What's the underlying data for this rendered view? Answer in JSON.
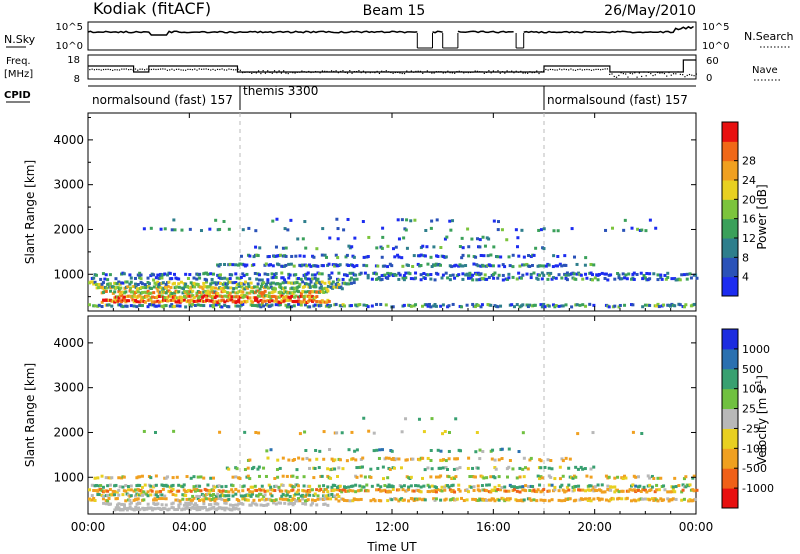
{
  "header": {
    "station": "Kodiak (fitACF)",
    "beam": "Beam 15",
    "date": "26/May/2010"
  },
  "panel_labels": {
    "nsky": "N.Sky",
    "nsky_ticks": [
      "10^5",
      "10^0"
    ],
    "nsearch": "N.Search",
    "nsearch_ticks": [
      "10^5",
      "10^0"
    ],
    "freq_line1": "Freq.",
    "freq_line2": "[MHz]",
    "freq_ticks": [
      "18",
      "8"
    ],
    "nave": "Nave",
    "nave_ticks": [
      "60",
      "0"
    ],
    "cpid": "CPID"
  },
  "cpid_segments": [
    {
      "label": "normalsound (fast) 157"
    },
    {
      "label": "themis 3300"
    },
    {
      "label": "normalsound (fast) 157"
    }
  ],
  "xaxis": {
    "title": "Time UT",
    "ticks": [
      "00:00",
      "04:00",
      "08:00",
      "12:00",
      "16:00",
      "20:00",
      "00:00"
    ]
  },
  "yaxis": {
    "title": "Slant Range [km]",
    "ticks": [
      "1000",
      "2000",
      "3000",
      "4000"
    ]
  },
  "power_colorbar": {
    "title": "Power [dB]",
    "ticks": [
      "4",
      "8",
      "12",
      "16",
      "20",
      "24",
      "28"
    ],
    "colors": [
      "#1c2cf0",
      "#2a52b8",
      "#2e7e8c",
      "#3aa05a",
      "#7cc43c",
      "#e8d020",
      "#f0a020",
      "#f06818",
      "#e81010"
    ]
  },
  "velocity_colorbar": {
    "title": "Velocity [m s",
    "title_sup": "-1",
    "title_end": "]",
    "ticks": [
      "-1000",
      "-500",
      "-100",
      "-25",
      "25",
      "100",
      "500",
      "1000"
    ],
    "colors": [
      "#e81010",
      "#f06018",
      "#f0a020",
      "#e8d020",
      "#b8b8b8",
      "#70c040",
      "#38a070",
      "#2a70b0",
      "#1c2ce0"
    ]
  },
  "chart_data": {
    "type": "heatmap",
    "title": "Kodiak (fitACF)",
    "subtitle": "Beam 15",
    "date": "26/May/2010",
    "xlabel": "Time UT",
    "xlim": [
      0,
      24
    ],
    "ylabel": "Slant Range [km]",
    "ylim": [
      180,
      4600
    ],
    "grid": false,
    "cpid_changes_hours": [
      6,
      18
    ],
    "panels": [
      {
        "name": "Power",
        "colorbar_label": "Power [dB]",
        "colorbar_range": [
          0,
          32
        ],
        "bands": [
          {
            "t0": 0.0,
            "t1": 24.0,
            "range_km": 300,
            "density": 0.55,
            "value": 9
          },
          {
            "t0": 0.5,
            "t1": 9.5,
            "range_km": 400,
            "density": 0.85,
            "value": 27
          },
          {
            "t0": 1.0,
            "t1": 9.0,
            "range_km": 500,
            "density": 0.85,
            "value": 23
          },
          {
            "t0": 0.5,
            "t1": 9.5,
            "range_km": 600,
            "density": 0.8,
            "value": 19
          },
          {
            "t0": 0.3,
            "t1": 10.0,
            "range_km": 700,
            "density": 0.75,
            "value": 15
          },
          {
            "t0": 0.0,
            "t1": 10.5,
            "range_km": 800,
            "density": 0.65,
            "value": 12
          },
          {
            "t0": 0.0,
            "t1": 24.0,
            "range_km": 900,
            "density": 0.35,
            "value": 7
          },
          {
            "t0": 0.0,
            "t1": 24.0,
            "range_km": 1000,
            "density": 0.45,
            "value": 6
          },
          {
            "t0": 5.0,
            "t1": 20.0,
            "range_km": 1200,
            "density": 0.4,
            "value": 7
          },
          {
            "t0": 6.0,
            "t1": 20.0,
            "range_km": 1400,
            "density": 0.3,
            "value": 6
          },
          {
            "t0": 6.5,
            "t1": 18.0,
            "range_km": 1600,
            "density": 0.22,
            "value": 7
          },
          {
            "t0": 8.0,
            "t1": 17.0,
            "range_km": 1800,
            "density": 0.15,
            "value": 6
          },
          {
            "t0": 2.0,
            "t1": 22.5,
            "range_km": 2000,
            "density": 0.12,
            "value": 7
          },
          {
            "t0": 3.0,
            "t1": 23.5,
            "range_km": 2200,
            "density": 0.05,
            "value": 6
          }
        ]
      },
      {
        "name": "Velocity",
        "colorbar_label": "Velocity [m s-1]",
        "colorbar_range": [
          -1000,
          1000
        ],
        "bands": [
          {
            "t0": 1.0,
            "t1": 6.0,
            "range_km": 300,
            "density": 0.9,
            "value": 0
          },
          {
            "t0": 0.5,
            "t1": 9.5,
            "range_km": 400,
            "density": 0.5,
            "value": 0
          },
          {
            "t0": 0.0,
            "t1": 24.0,
            "range_km": 500,
            "density": 0.55,
            "value": -150
          },
          {
            "t0": 0.0,
            "t1": 10.0,
            "range_km": 600,
            "density": 0.6,
            "value": 60
          },
          {
            "t0": 0.0,
            "t1": 24.0,
            "range_km": 700,
            "density": 0.55,
            "value": -300
          },
          {
            "t0": 0.0,
            "t1": 24.0,
            "range_km": 800,
            "density": 0.45,
            "value": 200
          },
          {
            "t0": 0.0,
            "t1": 24.0,
            "range_km": 1000,
            "density": 0.3,
            "value": -80
          },
          {
            "t0": 5.0,
            "t1": 20.0,
            "range_km": 1200,
            "density": 0.3,
            "value": 120
          },
          {
            "t0": 6.0,
            "t1": 19.0,
            "range_km": 1400,
            "density": 0.22,
            "value": -200
          },
          {
            "t0": 7.0,
            "t1": 17.0,
            "range_km": 1600,
            "density": 0.15,
            "value": 300
          },
          {
            "t0": 2.0,
            "t1": 23.5,
            "range_km": 2000,
            "density": 0.08,
            "value": -60
          },
          {
            "t0": 10.0,
            "t1": 16.0,
            "range_km": 2300,
            "density": 0.05,
            "value": 90
          }
        ]
      }
    ]
  }
}
